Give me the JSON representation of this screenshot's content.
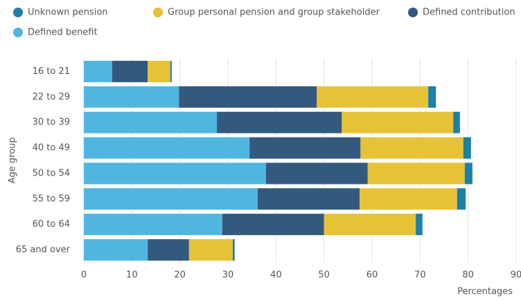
{
  "chart_data": {
    "type": "stacked-bar-horizontal",
    "categories": [
      "16 to 21",
      "22 to 29",
      "30 to 39",
      "40 to 49",
      "50 to 54",
      "55 to 59",
      "60 to 64",
      "65 and over"
    ],
    "series": [
      {
        "name": "Unknown pension",
        "color": "#1d80a8",
        "values": [
          0.3,
          1.6,
          1.4,
          1.6,
          1.6,
          1.8,
          1.4,
          0.4
        ]
      },
      {
        "name": "Group personal pension and group stakeholder",
        "color": "#e6c236",
        "values": [
          4.7,
          23.2,
          23.2,
          21.4,
          20.2,
          20.3,
          19.1,
          9.1
        ]
      },
      {
        "name": "Defined contribution",
        "color": "#335a7e",
        "values": [
          7.4,
          28.7,
          26.0,
          23.1,
          21.2,
          21.2,
          21.2,
          8.6
        ]
      },
      {
        "name": "Defined benefit",
        "color": "#4fb6e0",
        "values": [
          5.9,
          19.8,
          27.7,
          34.5,
          37.9,
          36.2,
          28.8,
          13.3
        ]
      }
    ],
    "stack_order": "reverse",
    "xlim": [
      0,
      90
    ],
    "xticks": [
      0,
      10,
      20,
      30,
      40,
      50,
      60,
      70,
      80,
      90
    ],
    "xlabel": "Percentages",
    "ylabel": "Age group",
    "grid": true
  }
}
